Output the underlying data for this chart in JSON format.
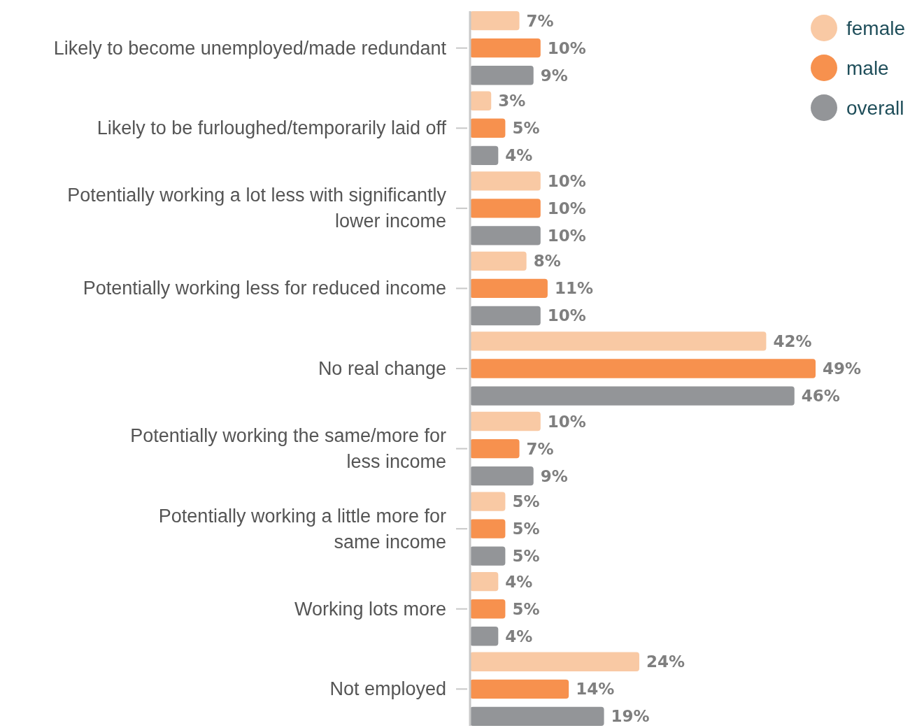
{
  "chart_data": {
    "type": "bar",
    "orientation": "horizontal",
    "categories": [
      "Likely to become unemployed/made redundant",
      "Likely to be furloughed/temporarily laid off",
      "Potentially working a lot less with significantly\nlower income",
      "Potentially working less for reduced income",
      "No real change",
      "Potentially working the same/more for\nless income",
      "Potentially working a little more for\nsame income",
      "Working lots more",
      "Not employed"
    ],
    "series": [
      {
        "name": "female",
        "color": "#f9c9a4",
        "values": [
          7,
          3,
          10,
          8,
          42,
          10,
          5,
          4,
          24
        ],
        "value_labels": [
          "7%",
          "3%",
          "10%",
          "8%",
          "42%",
          "10%",
          "5%",
          "4%",
          "24%"
        ]
      },
      {
        "name": "male",
        "color": "#f7914e",
        "values": [
          10,
          5,
          10,
          11,
          49,
          7,
          5,
          5,
          14
        ],
        "value_labels": [
          "10%",
          "5%",
          "10%",
          "11%",
          "49%",
          "7%",
          "5%",
          "5%",
          "14%"
        ]
      },
      {
        "name": "overall",
        "color": "#939598",
        "values": [
          9,
          4,
          10,
          10,
          46,
          9,
          5,
          4,
          19
        ],
        "value_labels": [
          "9%",
          "4%",
          "10%",
          "10%",
          "46%",
          "9%",
          "5%",
          "4%",
          "19%"
        ]
      }
    ],
    "tick_labels": "y",
    "legend": "top right"
  }
}
